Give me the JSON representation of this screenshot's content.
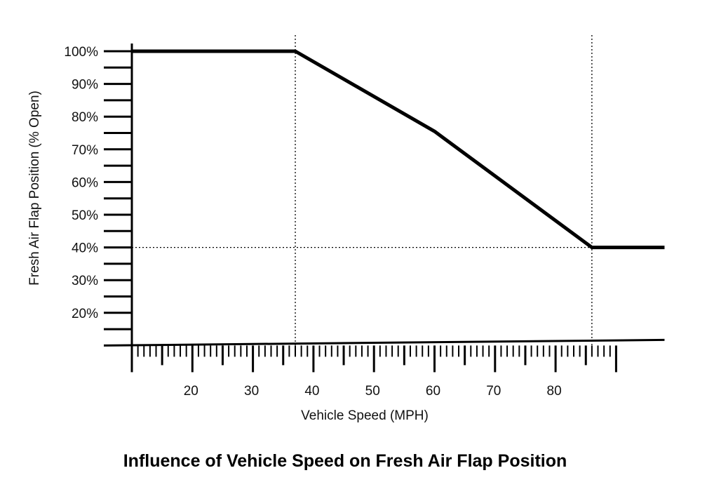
{
  "chart_data": {
    "type": "line",
    "title": "Influence of Vehicle Speed on Fresh Air Flap Position",
    "xlabel": "Vehicle Speed (MPH)",
    "ylabel": "Fresh Air Flap Position (% Open)",
    "xlim": [
      10,
      98
    ],
    "ylim": [
      10,
      100
    ],
    "x_ticks": [
      20,
      30,
      40,
      50,
      60,
      70,
      80
    ],
    "x_tick_labels": [
      "20",
      "30",
      "40",
      "50",
      "60",
      "70",
      "80"
    ],
    "y_ticks": [
      100,
      90,
      80,
      70,
      60,
      50,
      40,
      30,
      20
    ],
    "y_tick_labels": [
      "100%",
      "90%",
      "80%",
      "70%",
      "60%",
      "50%",
      "40%",
      "30%",
      "20%"
    ],
    "grid": false,
    "reference_lines": {
      "x": [
        37,
        86
      ],
      "y": [
        40
      ]
    },
    "series": [
      {
        "x": [
          10,
          37,
          60,
          86,
          98
        ],
        "y": [
          100,
          100,
          75.5,
          40,
          40
        ],
        "color": "#000000"
      }
    ]
  }
}
